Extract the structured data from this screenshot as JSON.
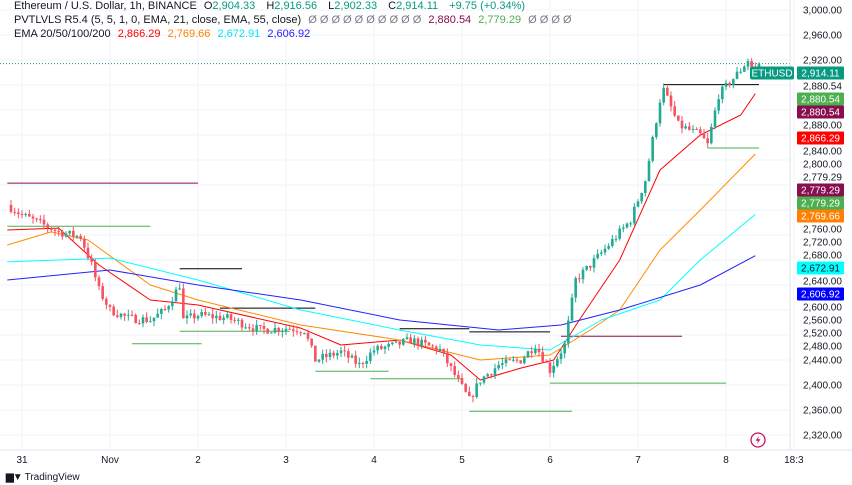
{
  "header": {
    "symbol_line": "Ethereum / U.S. Dollar, 1h, BINANCE",
    "open_label": "O",
    "open": "2,904.33",
    "high_label": "H",
    "high": "2,916.56",
    "low_label": "L",
    "low": "2,902.33",
    "close_label": "C",
    "close": "2,914.11",
    "change": "+9.75 (+0.34%)",
    "pvt_label": "PVTLVLS R5.4 (5, 5, 1, 0, EMA, 21, close, EMA, 55, close)",
    "pvt_empty": "Ø Ø Ø Ø Ø Ø Ø Ø Ø Ø",
    "pvt_value1": "2,880.54",
    "pvt_value2": "2,779.29",
    "pvt_empty2": "Ø Ø Ø Ø",
    "ema_label": "EMA 20/50/100/200",
    "ema_values": [
      "2,866.29",
      "2,769.66",
      "2,672.91",
      "2,606.92"
    ]
  },
  "footer": {
    "brand": "TradingView",
    "logo_text": "TV"
  },
  "icons": {
    "lightning": "lightning-icon",
    "logo": "tradingview-logo-icon"
  },
  "colors": {
    "up": "#22ab94",
    "down": "#f7525f",
    "ema20": "#ff0000",
    "ema50": "#ff8c00",
    "ema100": "#00ffff",
    "ema200": "#2222ff",
    "pivot_high": "#000000",
    "pivot_low": "#4caf50",
    "pivot_magenta": "#880e4f"
  },
  "chart_data": {
    "type": "candlestick",
    "title": "Ethereum / U.S. Dollar, 1h, BINANCE",
    "x_ticks": [
      "31",
      "Nov",
      "2",
      "3",
      "4",
      "5",
      "6",
      "7",
      "8",
      "18:3"
    ],
    "y_ticks": [
      "3,000.00",
      "2,960.00",
      "2,920.00",
      "2,880.00",
      "2,840.00",
      "2,800.00",
      "2,760.00",
      "2,720.00",
      "2,680.00",
      "2,640.00",
      "2,600.00",
      "2,560.00",
      "2,520.00",
      "2,480.00",
      "2,440.00",
      "2,400.00",
      "2,360.00",
      "2,320.00"
    ],
    "ylim": [
      2320,
      3000
    ],
    "grid": true,
    "close_path": [
      [
        "Oct 30 20:00",
        2688
      ],
      [
        "Oct 31 00:00",
        2672
      ],
      [
        "Oct 31 10:00",
        2645
      ],
      [
        "Oct 31 16:00",
        2637
      ],
      [
        "Oct 31 19:00",
        2592
      ],
      [
        "Oct 31 21:00",
        2552
      ],
      [
        "Nov 1 00:00",
        2520
      ],
      [
        "Nov 1 05:00",
        2507
      ],
      [
        "Nov 1 11:00",
        2504
      ],
      [
        "Nov 1 15:00",
        2520
      ],
      [
        "Nov 1 19:00",
        2560
      ],
      [
        "Nov 1 20:00",
        2504
      ],
      [
        "Nov 2 00:00",
        2512
      ],
      [
        "Nov 2 08:00",
        2507
      ],
      [
        "Nov 2 17:00",
        2488
      ],
      [
        "Nov 3 00:00",
        2491
      ],
      [
        "Nov 3 05:00",
        2488
      ],
      [
        "Nov 3 08:00",
        2440
      ],
      [
        "Nov 3 15:00",
        2453
      ],
      [
        "Nov 3 20:00",
        2432
      ],
      [
        "Nov 4 00:00",
        2456
      ],
      [
        "Nov 4 06:00",
        2464
      ],
      [
        "Nov 4 10:00",
        2472
      ],
      [
        "Nov 4 18:00",
        2456
      ],
      [
        "Nov 4 22:00",
        2416
      ],
      [
        "Nov 5 02:00",
        2376
      ],
      [
        "Nov 5 05:00",
        2408
      ],
      [
        "Nov 5 10:00",
        2432
      ],
      [
        "Nov 5 16:00",
        2440
      ],
      [
        "Nov 5 20:00",
        2464
      ],
      [
        "Nov 6 00:00",
        2424
      ],
      [
        "Nov 6 04:00",
        2464
      ],
      [
        "Nov 6 07:00",
        2568
      ],
      [
        "Nov 6 11:00",
        2592
      ],
      [
        "Nov 6 16:00",
        2624
      ],
      [
        "Nov 6 22:00",
        2664
      ],
      [
        "Nov 7 02:00",
        2728
      ],
      [
        "Nov 7 06:00",
        2856
      ],
      [
        "Nov 7 07:00",
        2872
      ],
      [
        "Nov 7 11:00",
        2816
      ],
      [
        "Nov 7 17:00",
        2800
      ],
      [
        "Nov 7 19:00",
        2784
      ],
      [
        "Nov 7 22:00",
        2864
      ],
      [
        "Nov 8 04:00",
        2904
      ],
      [
        "Nov 8 06:00",
        2920
      ],
      [
        "Nov 8 08:00",
        2896
      ],
      [
        "Nov 8 09:00",
        2914.11
      ]
    ],
    "last_candle": {
      "open": 2904.33,
      "high": 2916.56,
      "low": 2902.33,
      "close": 2914.11
    },
    "series": [
      {
        "name": "EMA 20",
        "color": "#ff0000",
        "points": [
          [
            "Oct 30 20:00",
            2648
          ],
          [
            "Oct 31 10:00",
            2651
          ],
          [
            "Oct 31 21:00",
            2592
          ],
          [
            "Nov 1 11:00",
            2536
          ],
          [
            "Nov 2 00:00",
            2528
          ],
          [
            "Nov 3 04:00",
            2491
          ],
          [
            "Nov 3 15:00",
            2464
          ],
          [
            "Nov 4 07:00",
            2472
          ],
          [
            "Nov 4 21:00",
            2448
          ],
          [
            "Nov 5 05:00",
            2408
          ],
          [
            "Nov 5 16:00",
            2427
          ],
          [
            "Nov 6 01:00",
            2440
          ],
          [
            "Nov 6 08:00",
            2504
          ],
          [
            "Nov 6 19:00",
            2600
          ],
          [
            "Nov 7 06:00",
            2744
          ],
          [
            "Nov 7 17:00",
            2800
          ],
          [
            "Nov 8 04:00",
            2832
          ],
          [
            "Nov 8 08:00",
            2866.29
          ]
        ]
      },
      {
        "name": "EMA 50",
        "color": "#ff8c00",
        "points": [
          [
            "Oct 30 20:00",
            2624
          ],
          [
            "Oct 31 08:00",
            2645
          ],
          [
            "Oct 31 18:00",
            2632
          ],
          [
            "Nov 1 11:00",
            2560
          ],
          [
            "Nov 2 00:00",
            2536
          ],
          [
            "Nov 3 04:00",
            2496
          ],
          [
            "Nov 4 07:00",
            2472
          ],
          [
            "Nov 5 05:00",
            2440
          ],
          [
            "Nov 6 00:00",
            2448
          ],
          [
            "Nov 6 11:00",
            2488
          ],
          [
            "Nov 6 19:00",
            2520
          ],
          [
            "Nov 7 06:00",
            2616
          ],
          [
            "Nov 7 17:00",
            2680
          ],
          [
            "Nov 8 08:00",
            2769.66
          ]
        ]
      },
      {
        "name": "EMA 100",
        "color": "#00ffff",
        "points": [
          [
            "Oct 30 20:00",
            2597
          ],
          [
            "Nov 1 00:00",
            2603
          ],
          [
            "Nov 2 00:00",
            2568
          ],
          [
            "Nov 3 04:00",
            2520
          ],
          [
            "Nov 4 07:00",
            2488
          ],
          [
            "Nov 5 05:00",
            2464
          ],
          [
            "Nov 6 00:00",
            2456
          ],
          [
            "Nov 6 14:00",
            2504
          ],
          [
            "Nov 7 06:00",
            2536
          ],
          [
            "Nov 7 17:00",
            2600
          ],
          [
            "Nov 8 08:00",
            2672.91
          ]
        ]
      },
      {
        "name": "EMA 200",
        "color": "#2222ff",
        "points": [
          [
            "Oct 30 20:00",
            2568
          ],
          [
            "Nov 1 00:00",
            2584
          ],
          [
            "Nov 2 00:00",
            2560
          ],
          [
            "Nov 3 04:00",
            2536
          ],
          [
            "Nov 4 07:00",
            2504
          ],
          [
            "Nov 5 10:00",
            2488
          ],
          [
            "Nov 6 03:00",
            2496
          ],
          [
            "Nov 6 19:00",
            2520
          ],
          [
            "Nov 7 17:00",
            2560
          ],
          [
            "Nov 8 08:00",
            2606.92
          ]
        ]
      }
    ],
    "pivot_levels": [
      {
        "price": 2723,
        "from": "Oct 30 20:00",
        "to": "Nov 2 00:00",
        "kind": "magenta"
      },
      {
        "price": 2654,
        "from": "Oct 30 20:00",
        "to": "Nov 1 11:00",
        "kind": "low"
      },
      {
        "price": 2586,
        "from": "Nov 1 19:00",
        "to": "Nov 2 12:00",
        "kind": "high"
      },
      {
        "price": 2523,
        "from": "Nov 2 06:00",
        "to": "Nov 3 08:00",
        "kind": "high"
      },
      {
        "price": 2486,
        "from": "Nov 1 19:00",
        "to": "Nov 3 01:00",
        "kind": "low"
      },
      {
        "price": 2466,
        "from": "Nov 1 06:00",
        "to": "Nov 2 01:00",
        "kind": "low"
      },
      {
        "price": 2490,
        "from": "Nov 4 07:00",
        "to": "Nov 5 02:00",
        "kind": "high"
      },
      {
        "price": 2485,
        "from": "Nov 5 02:00",
        "to": "Nov 6 00:00",
        "kind": "high"
      },
      {
        "price": 2478,
        "from": "Nov 6 03:00",
        "to": "Nov 7 12:00",
        "kind": "magenta"
      },
      {
        "price": 2422,
        "from": "Nov 3 08:00",
        "to": "Nov 4 04:00",
        "kind": "low"
      },
      {
        "price": 2410,
        "from": "Nov 3 23:00",
        "to": "Nov 5 00:00",
        "kind": "low"
      },
      {
        "price": 2403,
        "from": "Nov 6 00:00",
        "to": "Nov 8 00:00",
        "kind": "low"
      },
      {
        "price": 2358,
        "from": "Nov 5 02:00",
        "to": "Nov 6 06:00",
        "kind": "low"
      },
      {
        "price": 2880.54,
        "from": "Nov 7 07:00",
        "to": "Nov 8 09:00",
        "kind": "high"
      },
      {
        "price": 2779.29,
        "from": "Nov 7 19:00",
        "to": "Nov 8 09:00",
        "kind": "low"
      }
    ],
    "price_badges": [
      {
        "label": "ETHUSD",
        "value": "2,914.11",
        "price": 2914.11,
        "bg": "#089981",
        "fg": "#ffffff"
      },
      {
        "value": "2,880.54",
        "price": 2880.54,
        "bg": "#4caf50",
        "fg": "#ffffff"
      },
      {
        "value": "2,880.54",
        "price": 2880.54,
        "bg": "#880e4f",
        "fg": "#ffffff"
      },
      {
        "value": "2,866.29",
        "price": 2866.29,
        "bg": "#ff0000",
        "fg": "#ffffff"
      },
      {
        "value": "2,779.29",
        "price": 2779.29,
        "bg": "#880e4f",
        "fg": "#ffffff"
      },
      {
        "value": "2,779.29",
        "price": 2779.29,
        "bg": "#4caf50",
        "fg": "#ffffff"
      },
      {
        "value": "2,769.66",
        "price": 2769.66,
        "bg": "#ff8000",
        "fg": "#ffffff"
      },
      {
        "value": "2,672.91",
        "price": 2672.91,
        "bg": "#00ffff",
        "fg": "#131722"
      },
      {
        "value": "2,606.92",
        "price": 2606.92,
        "bg": "#0000ff",
        "fg": "#ffffff"
      }
    ],
    "plain_axis_labels": [
      {
        "value": "2,880.54",
        "price": 2880.54
      },
      {
        "value": "2,779.29",
        "price": 2779.29
      }
    ]
  }
}
